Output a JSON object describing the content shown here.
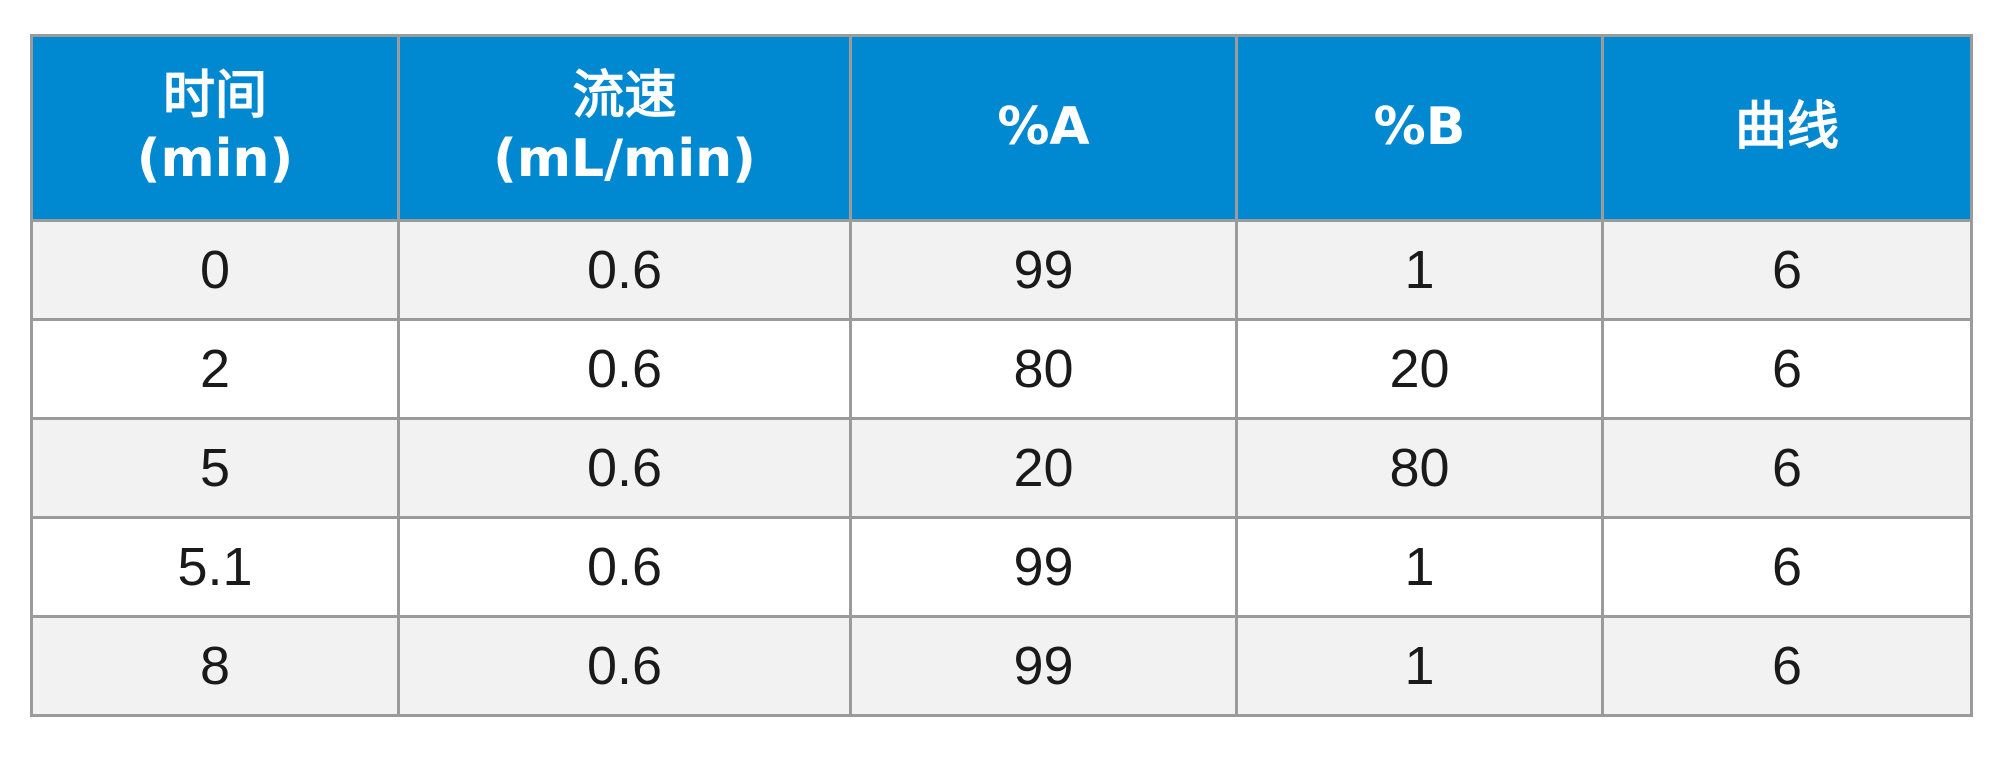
{
  "table": {
    "headers": [
      {
        "line1": "时间",
        "line2": "(min)"
      },
      {
        "line1": "流速",
        "line2": "(mL/min)"
      },
      {
        "line1": "%A",
        "line2": ""
      },
      {
        "line1": "%B",
        "line2": ""
      },
      {
        "line1": "曲线",
        "line2": ""
      }
    ],
    "rows": [
      [
        "0",
        "0.6",
        "99",
        "1",
        "6"
      ],
      [
        "2",
        "0.6",
        "80",
        "20",
        "6"
      ],
      [
        "5",
        "0.6",
        "20",
        "80",
        "6"
      ],
      [
        "5.1",
        "0.6",
        "99",
        "1",
        "6"
      ],
      [
        "8",
        "0.6",
        "99",
        "1",
        "6"
      ]
    ]
  },
  "colors": {
    "header_bg": "#0088d1",
    "header_text": "#ffffff",
    "row_alt_bg": "#f2f2f3",
    "border": "#9b9b9b"
  }
}
